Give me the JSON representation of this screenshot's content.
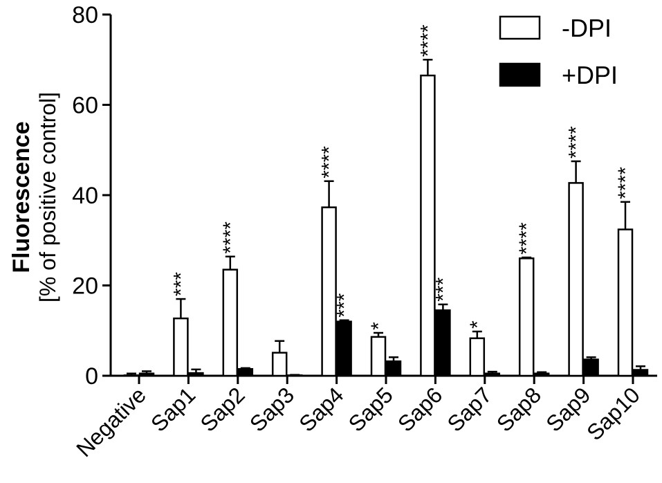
{
  "chart_data": {
    "type": "bar",
    "title": "",
    "ylabel_bold": "Fluorescence",
    "ylabel": "[% of positive control]",
    "xlabel": "",
    "ylim": [
      0,
      80
    ],
    "yticks": [
      "0",
      "20",
      "40",
      "60",
      "80"
    ],
    "grid": false,
    "legend_position": "top-right",
    "categories": [
      "Negative",
      "Sap1",
      "Sap2",
      "Sap3",
      "Sap4",
      "Sap5",
      "Sap6",
      "Sap7",
      "Sap8",
      "Sap9",
      "Sap10"
    ],
    "series": [
      {
        "name": "-DPI",
        "fill": "#ffffff",
        "values": [
          0.1,
          12.7,
          23.5,
          5.1,
          37.3,
          8.6,
          66.5,
          8.3,
          26.0,
          42.7,
          32.4
        ],
        "errors": [
          0.4,
          4.3,
          2.9,
          2.6,
          5.8,
          0.9,
          3.5,
          1.5,
          0.2,
          4.8,
          6.1
        ],
        "significance": [
          "",
          "***",
          "****",
          "",
          "****",
          "*",
          "****",
          "*",
          "****",
          "****",
          "****"
        ]
      },
      {
        "name": "+DPI",
        "fill": "#000000",
        "values": [
          0.5,
          0.6,
          1.5,
          0.1,
          12.0,
          3.2,
          14.5,
          0.5,
          0.5,
          3.6,
          1.3
        ],
        "errors": [
          0.5,
          0.8,
          0.2,
          0.1,
          0.3,
          0.9,
          1.3,
          0.4,
          0.3,
          0.5,
          0.8
        ],
        "significance": [
          "",
          "",
          "",
          "",
          "***",
          "",
          "***",
          "",
          "",
          "",
          ""
        ]
      }
    ]
  }
}
